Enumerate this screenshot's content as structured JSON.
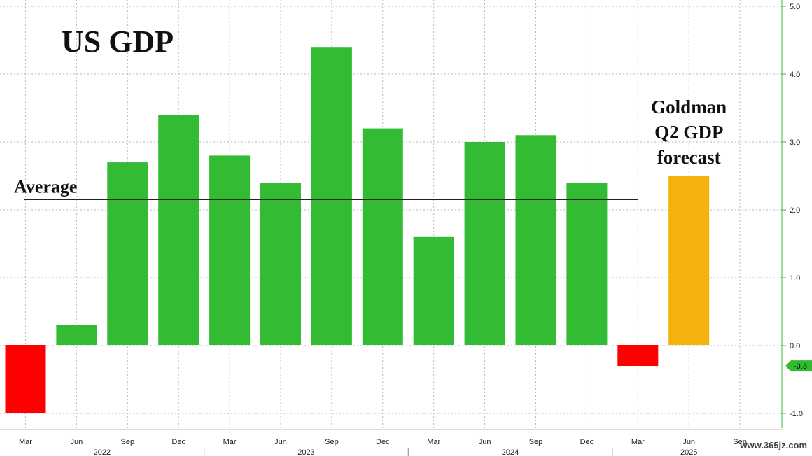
{
  "chart_data": {
    "type": "bar",
    "title": "US GDP",
    "categories": [
      "Mar",
      "Jun",
      "Sep",
      "Dec",
      "Mar",
      "Jun",
      "Sep",
      "Dec",
      "Mar",
      "Jun",
      "Sep",
      "Dec",
      "Mar",
      "Jun",
      "Sep"
    ],
    "years": [
      {
        "label": "2022",
        "start": 0,
        "end": 3
      },
      {
        "label": "2023",
        "start": 4,
        "end": 7
      },
      {
        "label": "2024",
        "start": 8,
        "end": 11
      },
      {
        "label": "2025",
        "start": 12,
        "end": 14
      }
    ],
    "values": [
      -1.0,
      0.3,
      2.7,
      3.4,
      2.8,
      2.4,
      4.4,
      3.2,
      1.6,
      3.0,
      3.1,
      2.4,
      -0.3,
      2.5,
      null
    ],
    "bar_colors": [
      "#ff0000",
      "#33bb33",
      "#33bb33",
      "#33bb33",
      "#33bb33",
      "#33bb33",
      "#33bb33",
      "#33bb33",
      "#33bb33",
      "#33bb33",
      "#33bb33",
      "#33bb33",
      "#ff0000",
      "#f5b10c",
      null
    ],
    "yticks": [
      5.0,
      4.0,
      3.0,
      2.0,
      1.0,
      0.0,
      -1.0
    ],
    "ytick_labels": [
      "5.0",
      "4.0",
      "3.0",
      "2.0",
      "1.0",
      "0.0",
      "-1.0"
    ],
    "ylim": [
      -1.2,
      5.0
    ],
    "average": {
      "label": "Average",
      "value": 2.15
    },
    "annotation": {
      "lines": [
        "Goldman",
        "Q2 GDP",
        "forecast"
      ]
    },
    "last_value_badge": {
      "label": "-0.3",
      "value": -0.3
    },
    "grid": true,
    "colors": {
      "positive": "#33bb33",
      "negative": "#ff0000",
      "forecast": "#f5b10c",
      "axis": "#33bb33",
      "badge": "#33bb33"
    }
  },
  "watermark": "www.365jz.com"
}
